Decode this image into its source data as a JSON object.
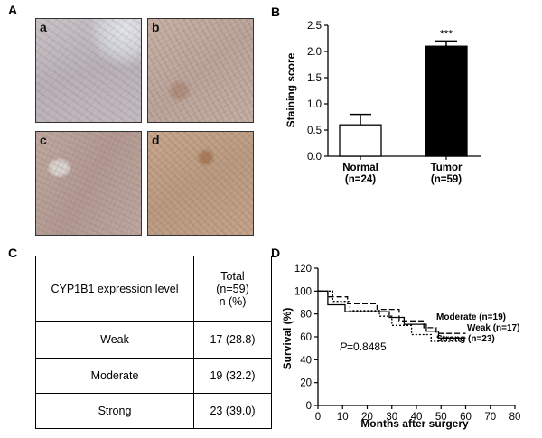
{
  "panels": {
    "A": "A",
    "B": "B",
    "C": "C",
    "D": "D"
  },
  "micrographs": [
    "a",
    "b",
    "c",
    "d"
  ],
  "table": {
    "header": {
      "col1": "CYP1B1  expression level",
      "col2_line1": "Total",
      "col2_line2": "(n=59)",
      "col2_line3": "n (%)"
    },
    "rows": [
      {
        "level": "Weak",
        "value": "17 (28.8)"
      },
      {
        "level": "Moderate",
        "value": "19 (32.2)"
      },
      {
        "level": "Strong",
        "value": "23 (39.0)"
      }
    ]
  },
  "chart_data": [
    {
      "type": "bar",
      "panel": "B",
      "categories": [
        "Normal",
        "Tumor"
      ],
      "category_n": [
        "(n=24)",
        "(n=59)"
      ],
      "values": [
        0.6,
        2.1
      ],
      "errors": [
        0.2,
        0.1
      ],
      "bar_colors": [
        "#ffffff",
        "#000000"
      ],
      "ylabel": "Staining score",
      "ylim": [
        0,
        2.5
      ],
      "yticks": [
        "0.0",
        "0.5",
        "1.0",
        "1.5",
        "2.0",
        "2.5"
      ],
      "annotation": "***"
    },
    {
      "type": "line",
      "panel": "D",
      "xlabel": "Months after surgery",
      "ylabel": "Survival (%)",
      "xlim": [
        0,
        80
      ],
      "ylim": [
        0,
        120
      ],
      "xticks": [
        "0",
        "10",
        "20",
        "30",
        "40",
        "50",
        "60",
        "70",
        "80"
      ],
      "yticks": [
        "0",
        "20",
        "40",
        "60",
        "80",
        "100",
        "120"
      ],
      "pvalue_prefix": "P",
      "pvalue_text": "=0.8485",
      "series": [
        {
          "name": "Moderate (n=19)",
          "style": "dashed",
          "x": [
            0,
            4,
            4,
            12,
            12,
            24,
            24,
            33,
            33,
            43,
            43,
            48,
            48,
            60
          ],
          "y": [
            100,
            100,
            95,
            95,
            89,
            89,
            84,
            84,
            74,
            74,
            68,
            68,
            63,
            63
          ]
        },
        {
          "name": "Weak (n=17)",
          "style": "solid",
          "x": [
            0,
            4,
            4,
            11,
            11,
            29,
            29,
            35,
            35,
            44,
            44,
            49,
            49,
            60
          ],
          "y": [
            100,
            100,
            88,
            88,
            82,
            82,
            77,
            77,
            71,
            71,
            65,
            65,
            59,
            59
          ]
        },
        {
          "name": "Strong (n=23)",
          "style": "dotted",
          "x": [
            0,
            6,
            6,
            13,
            13,
            25,
            25,
            30,
            30,
            38,
            38,
            46,
            46,
            60
          ],
          "y": [
            100,
            100,
            91,
            91,
            83,
            83,
            78,
            78,
            70,
            70,
            62,
            62,
            56,
            56
          ]
        }
      ]
    }
  ]
}
